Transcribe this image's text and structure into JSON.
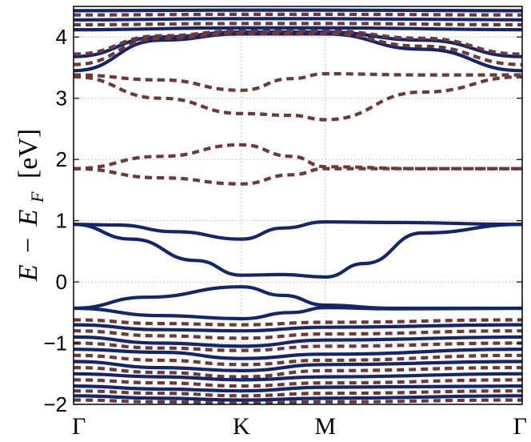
{
  "chart_data": {
    "type": "line",
    "title": "",
    "xlabel": "",
    "ylabel": "E − E_F [eV]",
    "ylabel_parts": {
      "e1": "E",
      "minus": "−",
      "e2": "E",
      "sub": "F",
      "unit": "[eV]"
    },
    "ylim": [
      -2.0,
      4.5
    ],
    "yticks": [
      -2,
      -1,
      0,
      1,
      2,
      3,
      4
    ],
    "ytick_labels": [
      "−2",
      "−1",
      "0",
      "1",
      "2",
      "3",
      "4"
    ],
    "kpath": {
      "labels": [
        "Γ",
        "K",
        "M",
        "Γ"
      ],
      "positions": [
        0,
        0.5774,
        0.866,
        1.5434
      ]
    },
    "grid": true,
    "colors": {
      "solid": "#14266b",
      "dashed": "#6e3a38"
    },
    "series": [
      {
        "style": "solid",
        "x": [
          0,
          0.15,
          0.35,
          0.5774,
          0.72,
          0.866,
          1.1,
          1.5434
        ],
        "y": [
          0.94,
          0.93,
          0.82,
          0.7,
          0.88,
          0.98,
          0.97,
          0.94
        ]
      },
      {
        "style": "solid",
        "x": [
          0,
          0.2,
          0.42,
          0.5774,
          0.72,
          0.866,
          1.0,
          1.2,
          1.5434
        ],
        "y": [
          0.94,
          0.7,
          0.35,
          0.11,
          0.12,
          0.08,
          0.3,
          0.8,
          0.94
        ]
      },
      {
        "style": "solid",
        "x": [
          0,
          0.25,
          0.5774,
          0.72,
          0.866,
          1.1,
          1.5434
        ],
        "y": [
          -0.43,
          -0.25,
          -0.08,
          -0.22,
          -0.38,
          -0.43,
          -0.43
        ]
      },
      {
        "style": "solid",
        "x": [
          0,
          0.3,
          0.5774,
          0.75,
          0.866,
          1.1,
          1.5434
        ],
        "y": [
          -0.43,
          -0.55,
          -0.6,
          -0.5,
          -0.42,
          -0.44,
          -0.43
        ]
      },
      {
        "style": "dashed",
        "x": [
          0,
          0.3,
          0.5774,
          0.75,
          0.866,
          1.2,
          1.5434
        ],
        "y": [
          1.85,
          1.7,
          1.6,
          1.75,
          1.85,
          1.85,
          1.85
        ]
      },
      {
        "style": "dashed",
        "x": [
          0,
          0.3,
          0.5774,
          0.75,
          0.866,
          1.2,
          1.5434
        ],
        "y": [
          1.85,
          2.05,
          2.24,
          2.05,
          1.88,
          1.85,
          1.85
        ]
      },
      {
        "style": "dashed",
        "x": [
          0,
          0.3,
          0.5774,
          0.75,
          0.866,
          1.2,
          1.5434
        ],
        "y": [
          3.35,
          3.0,
          2.75,
          2.72,
          2.65,
          3.1,
          3.35
        ]
      },
      {
        "style": "dashed",
        "x": [
          0,
          0.3,
          0.5774,
          0.75,
          0.866,
          1.2,
          1.5434
        ],
        "y": [
          3.38,
          3.3,
          3.13,
          3.32,
          3.4,
          3.38,
          3.38
        ]
      },
      {
        "style": "solid",
        "x": [
          0,
          0.3,
          0.5774,
          0.866,
          1.2,
          1.5434
        ],
        "y": [
          3.45,
          3.95,
          4.05,
          4.05,
          3.8,
          3.45
        ]
      },
      {
        "style": "solid",
        "x": [
          0,
          0.3,
          0.5774,
          0.866,
          1.2,
          1.5434
        ],
        "y": [
          3.68,
          4.0,
          4.08,
          4.08,
          3.95,
          3.68
        ]
      },
      {
        "style": "dashed",
        "x": [
          0,
          0.3,
          0.5774,
          0.866,
          1.2,
          1.5434
        ],
        "y": [
          3.55,
          3.98,
          4.06,
          4.06,
          3.85,
          3.55
        ]
      },
      {
        "style": "dashed",
        "x": [
          0,
          0.3,
          0.5774,
          0.866,
          1.2,
          1.5434
        ],
        "y": [
          3.72,
          4.02,
          4.1,
          4.1,
          3.98,
          3.72
        ]
      },
      {
        "style": "solid",
        "x": [
          0,
          0.5774,
          0.866,
          1.5434
        ],
        "y": [
          4.12,
          4.15,
          4.15,
          4.12
        ]
      },
      {
        "style": "dashed",
        "x": [
          0,
          0.5774,
          0.866,
          1.5434
        ],
        "y": [
          4.2,
          4.22,
          4.22,
          4.2
        ]
      },
      {
        "style": "solid",
        "x": [
          0,
          0.5774,
          0.866,
          1.5434
        ],
        "y": [
          4.28,
          4.3,
          4.3,
          4.28
        ]
      },
      {
        "style": "dashed",
        "x": [
          0,
          0.5774,
          0.866,
          1.5434
        ],
        "y": [
          4.36,
          4.37,
          4.37,
          4.36
        ]
      },
      {
        "style": "solid",
        "x": [
          0,
          0.5774,
          0.866,
          1.5434
        ],
        "y": [
          4.43,
          4.44,
          4.44,
          4.43
        ]
      },
      {
        "style": "dashed",
        "x": [
          0,
          0.3,
          0.5774,
          0.866,
          1.5434
        ],
        "y": [
          -0.62,
          -0.68,
          -0.7,
          -0.66,
          -0.62
        ]
      },
      {
        "style": "solid",
        "x": [
          0,
          0.3,
          0.5774,
          0.866,
          1.5434
        ],
        "y": [
          -0.7,
          -0.78,
          -0.8,
          -0.74,
          -0.7
        ]
      },
      {
        "style": "dashed",
        "x": [
          0,
          0.3,
          0.5774,
          0.866,
          1.5434
        ],
        "y": [
          -0.8,
          -0.88,
          -0.92,
          -0.85,
          -0.8
        ]
      },
      {
        "style": "solid",
        "x": [
          0,
          0.3,
          0.5774,
          0.866,
          1.5434
        ],
        "y": [
          -0.9,
          -1.0,
          -1.05,
          -0.95,
          -0.9
        ]
      },
      {
        "style": "dashed",
        "x": [
          0,
          0.3,
          0.5774,
          0.866,
          1.5434
        ],
        "y": [
          -1.0,
          -1.08,
          -1.12,
          -1.05,
          -1.0
        ]
      },
      {
        "style": "solid",
        "x": [
          0,
          0.3,
          0.5774,
          0.866,
          1.5434
        ],
        "y": [
          -1.1,
          -1.15,
          -1.25,
          -1.18,
          -1.1
        ]
      },
      {
        "style": "dashed",
        "x": [
          0,
          0.3,
          0.5774,
          0.866,
          1.5434
        ],
        "y": [
          -1.2,
          -1.28,
          -1.35,
          -1.28,
          -1.2
        ]
      },
      {
        "style": "solid",
        "x": [
          0,
          0.3,
          0.5774,
          0.866,
          1.5434
        ],
        "y": [
          -1.3,
          -1.4,
          -1.45,
          -1.35,
          -1.3
        ]
      },
      {
        "style": "dashed",
        "x": [
          0,
          0.3,
          0.5774,
          0.866,
          1.5434
        ],
        "y": [
          -1.4,
          -1.48,
          -1.55,
          -1.45,
          -1.4
        ]
      },
      {
        "style": "solid",
        "x": [
          0,
          0.3,
          0.5774,
          0.866,
          1.5434
        ],
        "y": [
          -1.5,
          -1.55,
          -1.6,
          -1.55,
          -1.5
        ]
      },
      {
        "style": "dashed",
        "x": [
          0,
          0.3,
          0.5774,
          0.866,
          1.5434
        ],
        "y": [
          -1.6,
          -1.65,
          -1.7,
          -1.65,
          -1.6
        ]
      },
      {
        "style": "solid",
        "x": [
          0,
          0.3,
          0.5774,
          0.866,
          1.5434
        ],
        "y": [
          -1.7,
          -1.75,
          -1.78,
          -1.72,
          -1.7
        ]
      },
      {
        "style": "dashed",
        "x": [
          0,
          0.3,
          0.5774,
          0.866,
          1.5434
        ],
        "y": [
          -1.78,
          -1.82,
          -1.86,
          -1.82,
          -1.78
        ]
      },
      {
        "style": "solid",
        "x": [
          0,
          0.3,
          0.5774,
          0.866,
          1.5434
        ],
        "y": [
          -1.86,
          -1.9,
          -1.93,
          -1.9,
          -1.86
        ]
      },
      {
        "style": "dashed",
        "x": [
          0,
          0.3,
          0.5774,
          0.866,
          1.5434
        ],
        "y": [
          -1.93,
          -1.96,
          -1.98,
          -1.96,
          -1.93
        ]
      }
    ]
  }
}
